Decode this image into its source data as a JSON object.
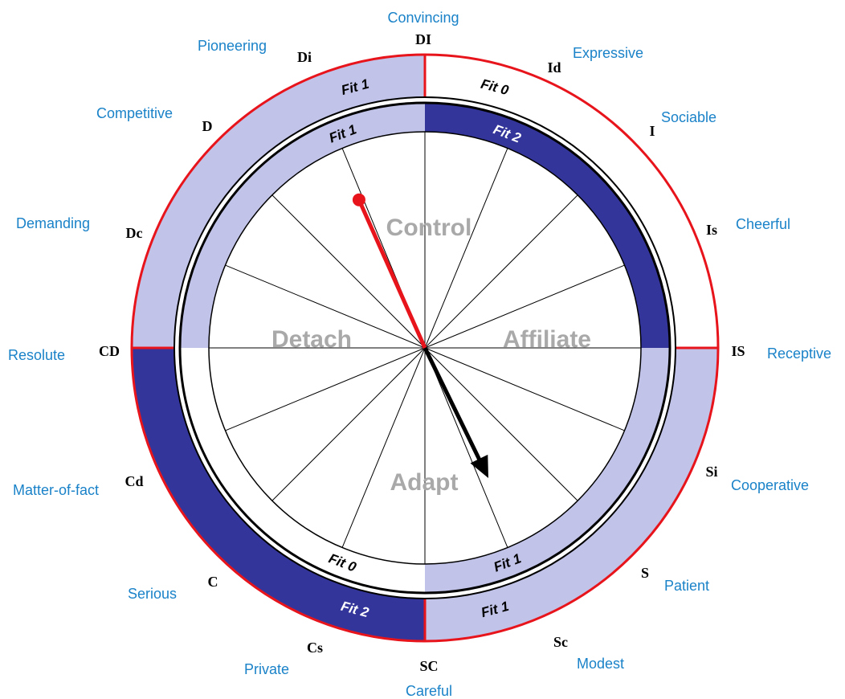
{
  "colors": {
    "outer_ring_stroke": "#e8141c",
    "light_fill": "#c1c3e8",
    "dark_fill": "#34359a",
    "white": "#ffffff",
    "spoke": "#000000",
    "style_text": "#1a82c8",
    "code_text": "#000000",
    "quad_text": "#a9a9a9",
    "red_pointer": "#e8141c",
    "black_pointer": "#000000"
  },
  "styles": [
    {
      "name": "Convincing",
      "code": "DI"
    },
    {
      "name": "Expressive",
      "code": "Id"
    },
    {
      "name": "Sociable",
      "code": "I"
    },
    {
      "name": "Cheerful",
      "code": "Is"
    },
    {
      "name": "Receptive",
      "code": "IS"
    },
    {
      "name": "Cooperative",
      "code": "Si"
    },
    {
      "name": "Patient",
      "code": "S"
    },
    {
      "name": "Modest",
      "code": "Sc"
    },
    {
      "name": "Careful",
      "code": "SC"
    },
    {
      "name": "Private",
      "code": "Cs"
    },
    {
      "name": "Serious",
      "code": "C"
    },
    {
      "name": "Matter-of-fact",
      "code": "Cd"
    },
    {
      "name": "Resolute",
      "code": "CD"
    },
    {
      "name": "Demanding",
      "code": "Dc"
    },
    {
      "name": "Competitive",
      "code": "D"
    },
    {
      "name": "Pioneering",
      "code": "Di"
    }
  ],
  "outer_ring": {
    "quadrants": [
      {
        "range_deg": [
          270,
          360
        ],
        "fill": "light",
        "label": "Fit 1"
      },
      {
        "range_deg": [
          0,
          90
        ],
        "fill": "white",
        "label": "Fit 0"
      },
      {
        "range_deg": [
          90,
          180
        ],
        "fill": "light",
        "label": "Fit 1"
      },
      {
        "range_deg": [
          180,
          270
        ],
        "fill": "dark",
        "label": "Fit 2"
      }
    ]
  },
  "inner_ring": {
    "quadrants": [
      {
        "range_deg": [
          270,
          360
        ],
        "fill": "light",
        "label": "Fit 1"
      },
      {
        "range_deg": [
          0,
          90
        ],
        "fill": "dark",
        "label": "Fit 2"
      },
      {
        "range_deg": [
          90,
          180
        ],
        "fill": "light",
        "label": "Fit 1"
      },
      {
        "range_deg": [
          180,
          270
        ],
        "fill": "white",
        "label": "Fit 0"
      }
    ]
  },
  "quadrant_labels": {
    "top": "Control",
    "right": "Affiliate",
    "bottom": "Adapt",
    "left": "Detach"
  },
  "pointers": {
    "red": {
      "angle_deg": 336,
      "length_fraction": 0.75
    },
    "black": {
      "angle_deg": 154,
      "length_fraction": 0.67
    }
  }
}
